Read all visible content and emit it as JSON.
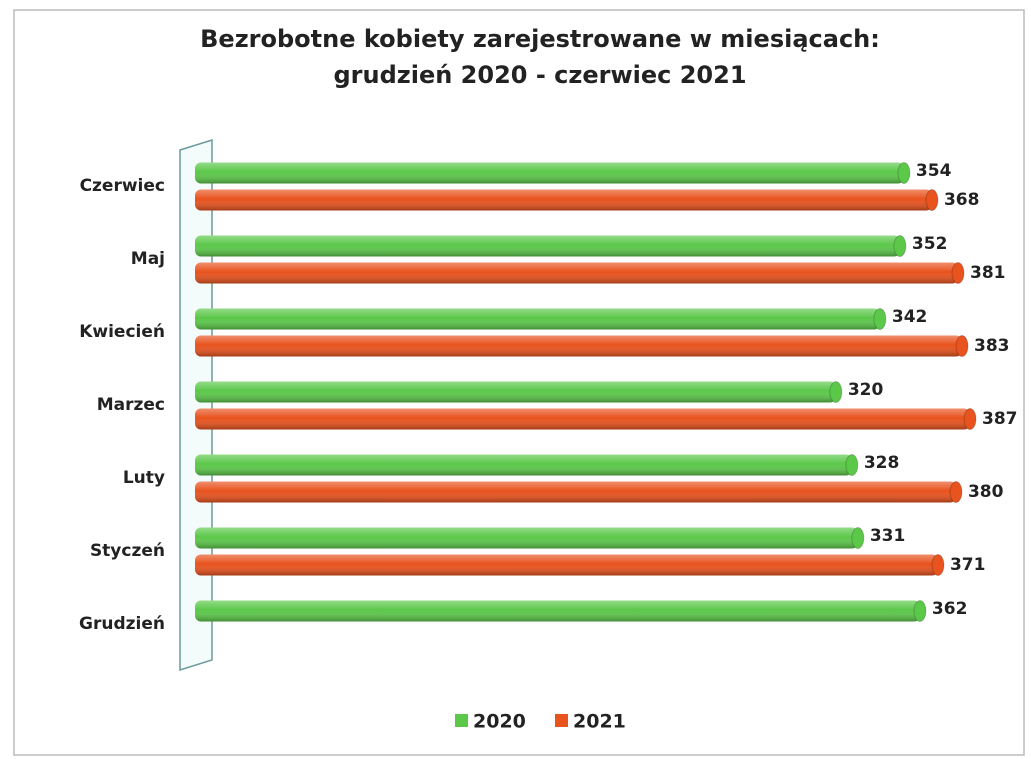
{
  "chart_data": {
    "type": "bar",
    "orientation": "horizontal",
    "title": [
      "Bezrobotne kobiety zarejestrowane w miesiącach:",
      "grudzień 2020 - czerwiec 2021"
    ],
    "categories": [
      "Czerwiec",
      "Maj",
      "Kwiecień",
      "Marzec",
      "Luty",
      "Styczeń",
      "Grudzień"
    ],
    "series": [
      {
        "name": "2020",
        "color": "#5cc84a",
        "values": [
          354,
          352,
          342,
          320,
          328,
          331,
          362
        ]
      },
      {
        "name": "2021",
        "color": "#e8531e",
        "values": [
          368,
          381,
          383,
          387,
          380,
          371,
          null
        ]
      }
    ],
    "legend": "bottom"
  }
}
